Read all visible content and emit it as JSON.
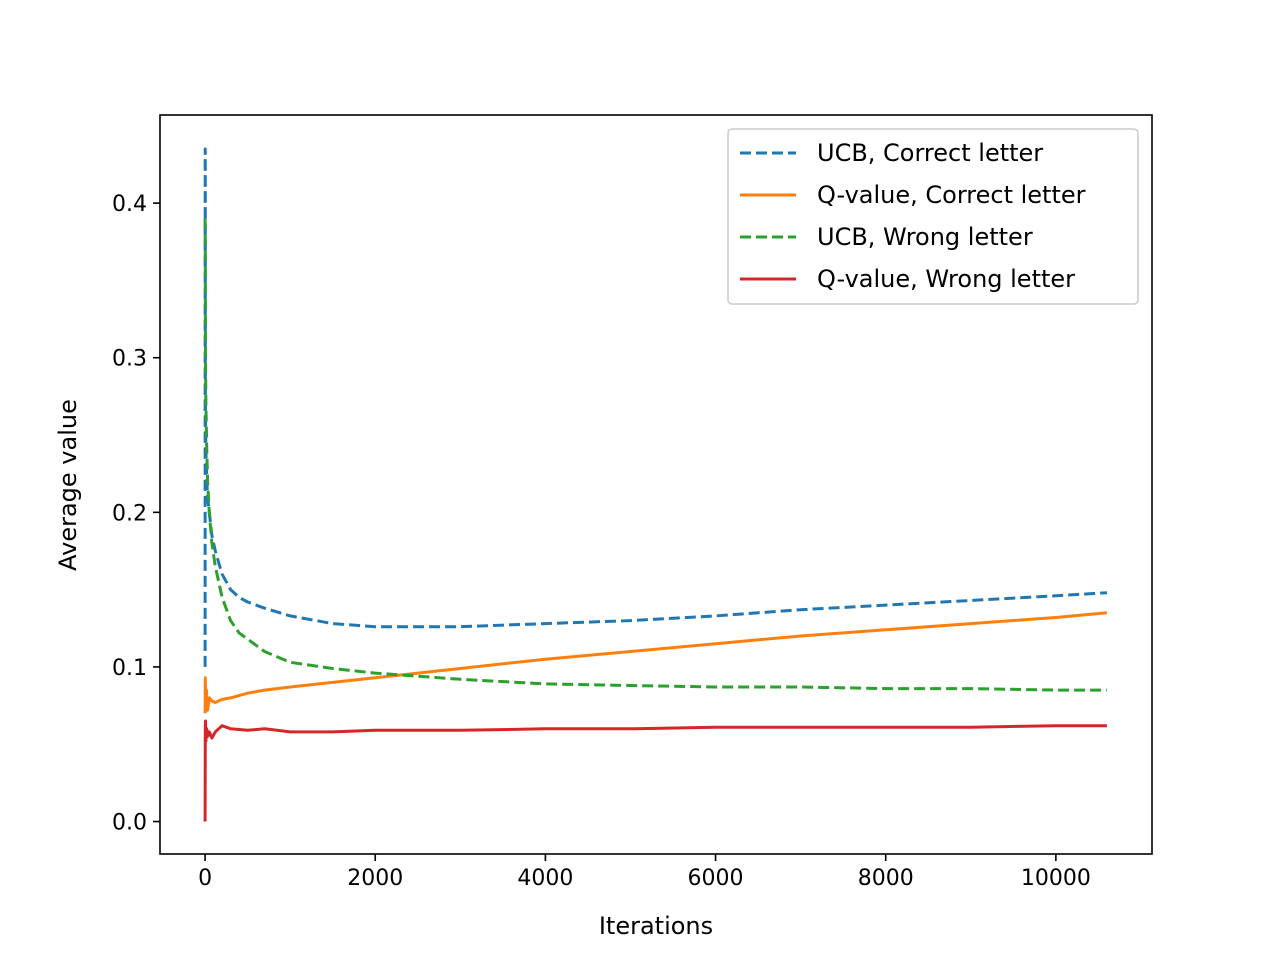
{
  "chart_data": {
    "type": "line",
    "title": "",
    "xlabel": "Iterations",
    "ylabel": "Average value",
    "xlim": [
      -530,
      11130
    ],
    "ylim": [
      -0.021,
      0.457
    ],
    "xticks": [
      0,
      2000,
      4000,
      6000,
      8000,
      10000
    ],
    "xtick_labels": [
      "0",
      "2000",
      "4000",
      "6000",
      "8000",
      "10000"
    ],
    "yticks": [
      0.0,
      0.1,
      0.2,
      0.3,
      0.4
    ],
    "ytick_labels": [
      "0.0",
      "0.1",
      "0.2",
      "0.3",
      "0.4"
    ],
    "grid": false,
    "legend_position": "top-right",
    "series": [
      {
        "name": "UCB, Correct letter",
        "color": "#1f77b4",
        "style": "dashed",
        "x": [
          0,
          1,
          2,
          3,
          5,
          10,
          20,
          30,
          50,
          80,
          120,
          200,
          300,
          400,
          500,
          700,
          1000,
          1500,
          2000,
          2500,
          3000,
          4000,
          5000,
          6000,
          7000,
          8000,
          9000,
          10000,
          10600
        ],
        "y": [
          0.1,
          0.435,
          0.41,
          0.3,
          0.26,
          0.24,
          0.22,
          0.21,
          0.2,
          0.185,
          0.175,
          0.16,
          0.15,
          0.145,
          0.142,
          0.138,
          0.133,
          0.128,
          0.126,
          0.126,
          0.126,
          0.128,
          0.13,
          0.133,
          0.137,
          0.14,
          0.143,
          0.146,
          0.148
        ]
      },
      {
        "name": "Q-value, Correct letter",
        "color": "#ff7f0e",
        "style": "solid",
        "x": [
          0,
          3,
          8,
          15,
          30,
          50,
          80,
          120,
          200,
          300,
          500,
          700,
          1000,
          1500,
          2000,
          2500,
          3000,
          4000,
          5000,
          6000,
          7000,
          8000,
          9000,
          10000,
          10600
        ],
        "y": [
          0.07,
          0.093,
          0.075,
          0.085,
          0.072,
          0.08,
          0.078,
          0.077,
          0.079,
          0.08,
          0.083,
          0.085,
          0.087,
          0.09,
          0.093,
          0.096,
          0.099,
          0.105,
          0.11,
          0.115,
          0.12,
          0.124,
          0.128,
          0.132,
          0.135
        ]
      },
      {
        "name": "UCB, Wrong letter",
        "color": "#2ca02c",
        "style": "dashed",
        "x": [
          0,
          2,
          5,
          10,
          20,
          30,
          50,
          80,
          120,
          200,
          300,
          400,
          500,
          700,
          1000,
          1500,
          2000,
          2500,
          3000,
          4000,
          5000,
          6000,
          7000,
          8000,
          9000,
          10000,
          10600
        ],
        "y": [
          0.39,
          0.37,
          0.3,
          0.27,
          0.24,
          0.22,
          0.2,
          0.18,
          0.165,
          0.145,
          0.13,
          0.122,
          0.118,
          0.11,
          0.103,
          0.099,
          0.096,
          0.094,
          0.092,
          0.089,
          0.088,
          0.087,
          0.087,
          0.086,
          0.086,
          0.085,
          0.085
        ]
      },
      {
        "name": "Q-value, Wrong letter",
        "color": "#d62728",
        "style": "solid",
        "x": [
          0,
          2,
          5,
          10,
          20,
          30,
          50,
          80,
          120,
          200,
          300,
          500,
          700,
          1000,
          1500,
          2000,
          3000,
          4000,
          5000,
          6000,
          7000,
          8000,
          9000,
          10000,
          10600
        ],
        "y": [
          0.0,
          0.06,
          0.065,
          0.052,
          0.06,
          0.055,
          0.058,
          0.054,
          0.058,
          0.062,
          0.06,
          0.059,
          0.06,
          0.058,
          0.058,
          0.059,
          0.059,
          0.06,
          0.06,
          0.061,
          0.061,
          0.061,
          0.061,
          0.062,
          0.062
        ]
      }
    ]
  }
}
